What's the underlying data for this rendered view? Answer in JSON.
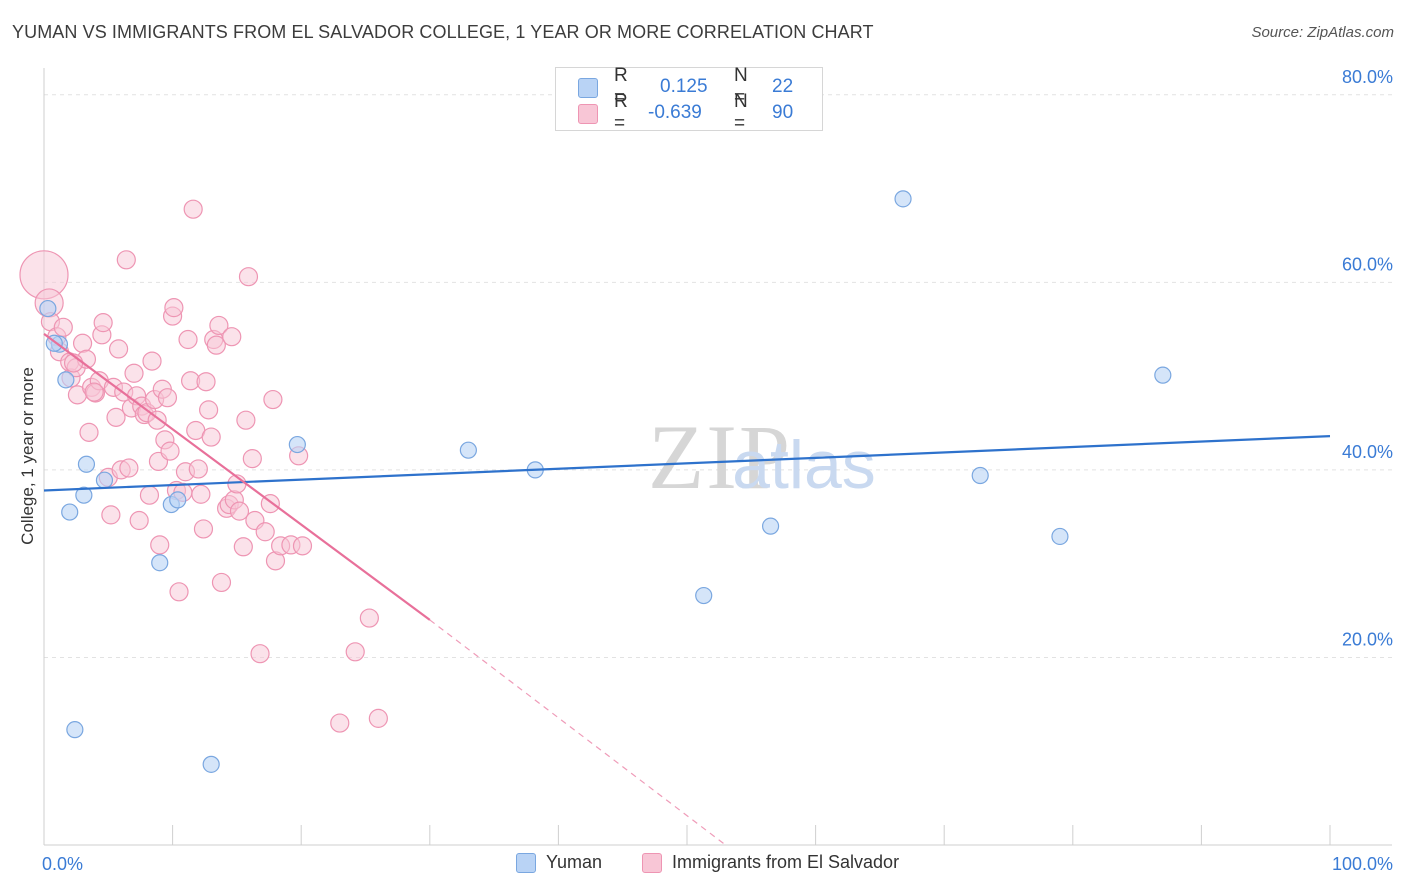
{
  "title": "YUMAN VS IMMIGRANTS FROM EL SALVADOR COLLEGE, 1 YEAR OR MORE CORRELATION CHART",
  "source": "Source: ZipAtlas.com",
  "watermark": {
    "zip": "ZIP",
    "atlas": "atlas"
  },
  "stats": {
    "rows": [
      {
        "r_label": "R =",
        "r_value": "0.125",
        "n_label": "N =",
        "n_value": "22"
      },
      {
        "r_label": "R =",
        "r_value": "-0.639",
        "n_label": "N =",
        "n_value": "90"
      }
    ]
  },
  "legend": {
    "yuman": "Yuman",
    "salvador": "Immigrants from El Salvador"
  },
  "colors": {
    "yuman_fill": "#b9d3f5",
    "yuman_stroke": "#7aa7e0",
    "yuman_line": "#2e72cc",
    "salvador_fill": "#f8c6d6",
    "salvador_stroke": "#ee95b3",
    "salvador_line": "#e8709a",
    "axis_text": "#3a7bd5",
    "grid": "#e2e2e2"
  },
  "chart_data": {
    "type": "scatter",
    "title": "YUMAN VS IMMIGRANTS FROM EL SALVADOR COLLEGE, 1 YEAR OR MORE CORRELATION CHART",
    "xlabel": "",
    "ylabel": "College, 1 year or more",
    "xlim": [
      0,
      100
    ],
    "ylim": [
      0,
      82
    ],
    "x_tick_labels": [
      "0.0%",
      "100.0%"
    ],
    "y_ticks": [
      20,
      40,
      60,
      80
    ],
    "y_tick_labels": [
      "20.0%",
      "40.0%",
      "60.0%",
      "80.0%"
    ],
    "series": [
      {
        "name": "Yuman",
        "points": [
          [
            0.3,
            57.2
          ],
          [
            1.2,
            53.4
          ],
          [
            1.7,
            49.6
          ],
          [
            2.0,
            35.5
          ],
          [
            2.4,
            12.3
          ],
          [
            3.1,
            37.3
          ],
          [
            3.3,
            40.6
          ],
          [
            4.7,
            38.9
          ],
          [
            9.0,
            30.1
          ],
          [
            9.9,
            36.3
          ],
          [
            10.4,
            36.8
          ],
          [
            13.0,
            8.6
          ],
          [
            19.7,
            42.7
          ],
          [
            33.0,
            42.1
          ],
          [
            38.2,
            40.0
          ],
          [
            51.3,
            26.6
          ],
          [
            56.5,
            34.0
          ],
          [
            66.8,
            68.9
          ],
          [
            72.8,
            39.4
          ],
          [
            79.0,
            32.9
          ],
          [
            87.0,
            50.1
          ],
          [
            0.8,
            53.5
          ]
        ],
        "trend": {
          "x": [
            0,
            100
          ],
          "y": [
            37.8,
            43.6
          ],
          "style": "solid"
        }
      },
      {
        "name": "Immigrants from El Salvador",
        "points": [
          [
            0.0,
            60.8
          ],
          [
            0.4,
            57.8
          ],
          [
            0.5,
            55.8
          ],
          [
            1.0,
            54.2
          ],
          [
            1.2,
            52.6
          ],
          [
            1.5,
            55.2
          ],
          [
            2.0,
            51.5
          ],
          [
            2.1,
            49.8
          ],
          [
            2.5,
            50.9
          ],
          [
            2.6,
            48.0
          ],
          [
            3.0,
            53.5
          ],
          [
            3.3,
            51.8
          ],
          [
            3.5,
            44.0
          ],
          [
            3.7,
            48.8
          ],
          [
            4.0,
            48.2
          ],
          [
            4.3,
            49.5
          ],
          [
            4.5,
            54.4
          ],
          [
            4.6,
            55.7
          ],
          [
            5.0,
            39.2
          ],
          [
            5.2,
            35.2
          ],
          [
            5.4,
            48.8
          ],
          [
            5.6,
            45.6
          ],
          [
            5.8,
            52.9
          ],
          [
            6.0,
            40.0
          ],
          [
            6.2,
            48.3
          ],
          [
            6.4,
            62.4
          ],
          [
            6.6,
            40.2
          ],
          [
            6.8,
            46.6
          ],
          [
            7.0,
            50.3
          ],
          [
            7.2,
            47.9
          ],
          [
            7.4,
            34.6
          ],
          [
            7.6,
            46.8
          ],
          [
            7.8,
            45.9
          ],
          [
            8.0,
            46.1
          ],
          [
            8.2,
            37.3
          ],
          [
            8.4,
            51.6
          ],
          [
            8.6,
            47.5
          ],
          [
            8.8,
            45.3
          ],
          [
            8.9,
            40.9
          ],
          [
            9.0,
            32.0
          ],
          [
            9.2,
            48.6
          ],
          [
            9.4,
            43.2
          ],
          [
            9.6,
            47.7
          ],
          [
            9.8,
            42.0
          ],
          [
            10.0,
            56.4
          ],
          [
            10.1,
            57.3
          ],
          [
            10.3,
            37.8
          ],
          [
            10.5,
            27.0
          ],
          [
            10.8,
            37.6
          ],
          [
            11.0,
            39.8
          ],
          [
            11.2,
            53.9
          ],
          [
            11.4,
            49.5
          ],
          [
            11.6,
            67.8
          ],
          [
            11.8,
            44.2
          ],
          [
            12.0,
            40.1
          ],
          [
            12.2,
            37.4
          ],
          [
            12.4,
            33.7
          ],
          [
            12.6,
            49.4
          ],
          [
            12.8,
            46.4
          ],
          [
            13.0,
            43.5
          ],
          [
            13.2,
            53.9
          ],
          [
            13.4,
            53.3
          ],
          [
            13.6,
            55.4
          ],
          [
            13.8,
            28.0
          ],
          [
            14.2,
            35.9
          ],
          [
            14.4,
            36.3
          ],
          [
            14.6,
            54.2
          ],
          [
            14.8,
            36.8
          ],
          [
            15.0,
            38.5
          ],
          [
            15.2,
            35.6
          ],
          [
            15.5,
            31.8
          ],
          [
            15.7,
            45.3
          ],
          [
            15.9,
            60.6
          ],
          [
            16.2,
            41.2
          ],
          [
            16.4,
            34.6
          ],
          [
            16.8,
            20.4
          ],
          [
            17.2,
            33.4
          ],
          [
            17.6,
            36.4
          ],
          [
            17.8,
            47.5
          ],
          [
            18.0,
            30.3
          ],
          [
            18.4,
            31.9
          ],
          [
            19.2,
            32.0
          ],
          [
            19.8,
            41.5
          ],
          [
            20.1,
            31.9
          ],
          [
            23.0,
            13.0
          ],
          [
            24.2,
            20.6
          ],
          [
            25.3,
            24.2
          ],
          [
            26.0,
            13.5
          ],
          [
            2.3,
            51.4
          ],
          [
            3.9,
            48.3
          ]
        ],
        "trend": {
          "x": [
            0,
            30
          ],
          "y": [
            54.5,
            24.0
          ],
          "style": "solid"
        },
        "trend_extension": {
          "x": [
            30,
            53
          ],
          "y": [
            24.0,
            0
          ],
          "style": "dashed"
        }
      }
    ]
  }
}
